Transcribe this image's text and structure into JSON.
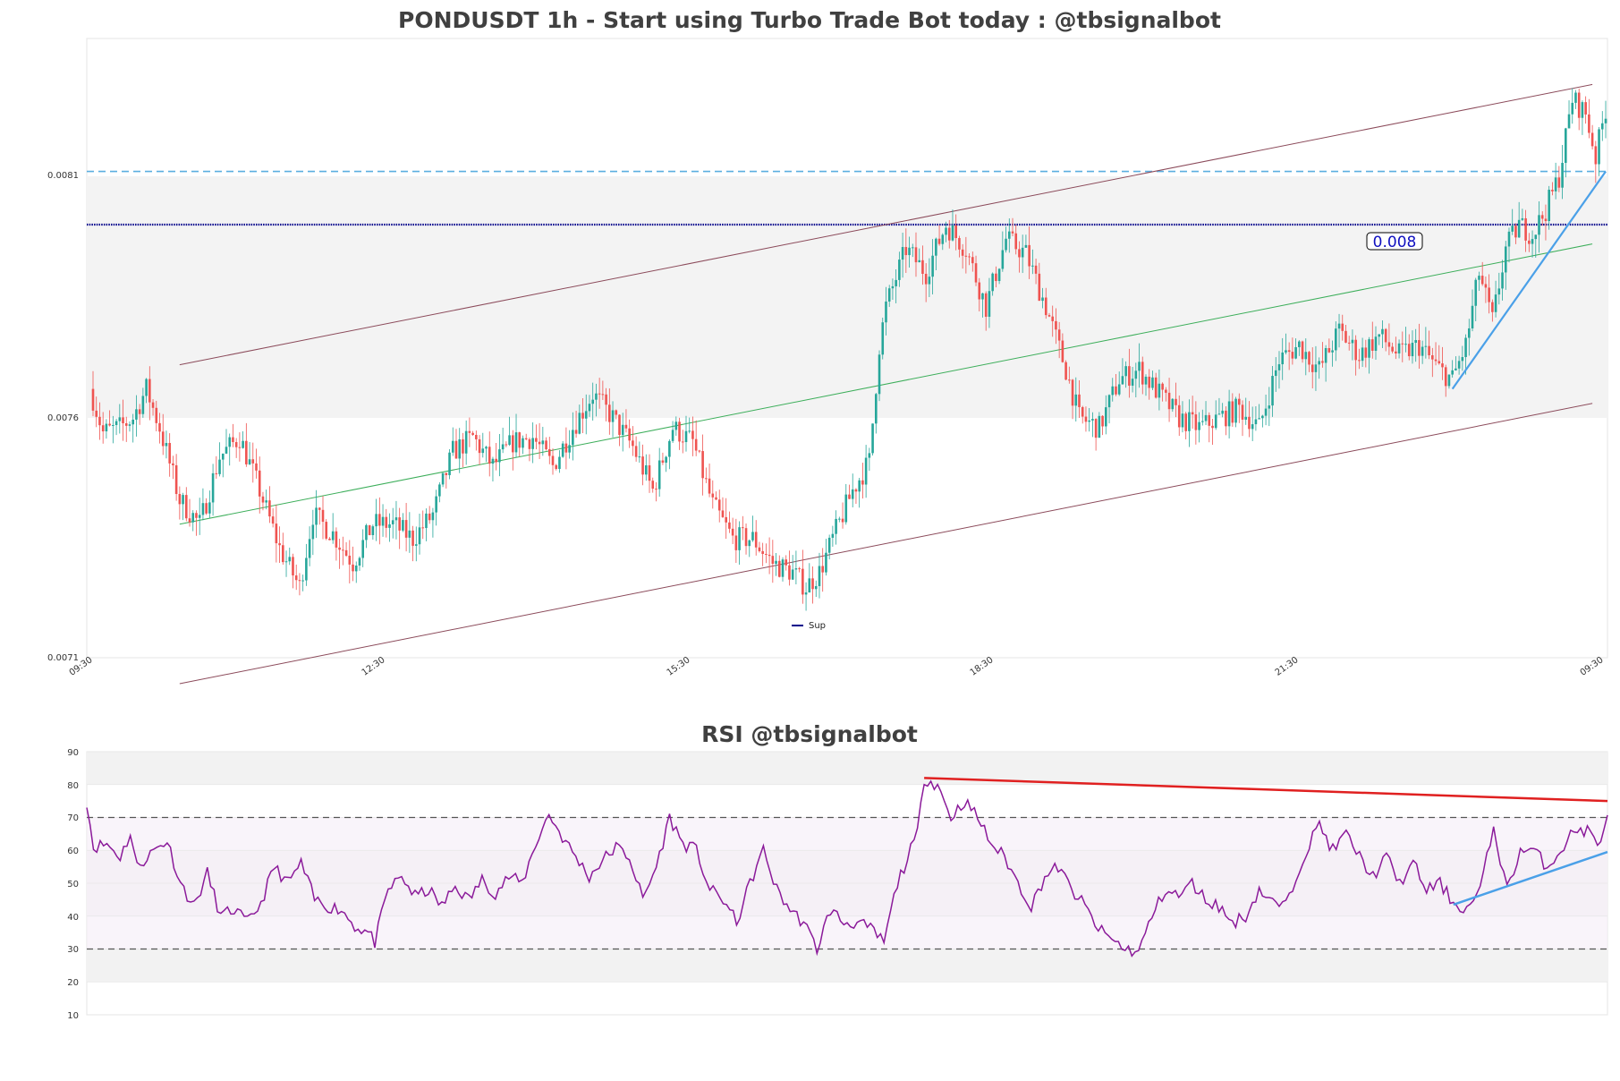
{
  "main_chart": {
    "title": "PONDUSDT 1h - Start using Turbo Trade Bot today : @tbsignalbot",
    "price_label": "0.008",
    "legend_label": "Sup",
    "y_ticks": [
      "0.0081",
      "0.0076",
      "0.0071"
    ],
    "x_ticks": [
      "09:30",
      "12:30",
      "15:30",
      "18:30",
      "21:30",
      "09:30"
    ]
  },
  "rsi_chart": {
    "title": "RSI @tbsignalbot",
    "y_ticks": [
      "90",
      "80",
      "70",
      "60",
      "50",
      "40",
      "30",
      "20",
      "10"
    ]
  },
  "colors": {
    "up": "#26a69a",
    "down": "#ef5350",
    "support_line": "#00008b",
    "dashed_level": "#5aaee0",
    "channel": "#8b4a5a",
    "midline": "#3cae5a",
    "trend_blue": "#4aa0e8",
    "rsi_line": "#8b1a9a",
    "rsi_resistance": "#e02020"
  },
  "chart_data": [
    {
      "type": "candlestick",
      "title": "PONDUSDT 1h - Start using Turbo Trade Bot today : @tbsignalbot",
      "ylim": [
        0.0071,
        0.00836
      ],
      "y_ticks": [
        0.0081,
        0.0076,
        0.0071
      ],
      "x_ticks": [
        "09:30",
        "12:30",
        "15:30",
        "18:30",
        "21:30",
        "09:30"
      ],
      "support_level": 0.008,
      "dashed_level": 0.00811,
      "shaded_band": [
        0.0076,
        0.0081
      ],
      "close_anchors": [
        [
          0,
          0.00764
        ],
        [
          3,
          0.00757
        ],
        [
          8,
          0.00758
        ],
        [
          12,
          0.0076
        ],
        [
          16,
          0.00766
        ],
        [
          20,
          0.00758
        ],
        [
          26,
          0.00743
        ],
        [
          32,
          0.00738
        ],
        [
          38,
          0.00752
        ],
        [
          44,
          0.00756
        ],
        [
          50,
          0.00745
        ],
        [
          56,
          0.00733
        ],
        [
          62,
          0.00725
        ],
        [
          66,
          0.0074
        ],
        [
          72,
          0.00736
        ],
        [
          78,
          0.0073
        ],
        [
          84,
          0.00738
        ],
        [
          90,
          0.00738
        ],
        [
          96,
          0.00735
        ],
        [
          102,
          0.0074
        ],
        [
          108,
          0.00753
        ],
        [
          114,
          0.00756
        ],
        [
          120,
          0.0075
        ],
        [
          126,
          0.00755
        ],
        [
          132,
          0.00756
        ],
        [
          138,
          0.0075
        ],
        [
          144,
          0.00758
        ],
        [
          150,
          0.00765
        ],
        [
          156,
          0.0076
        ],
        [
          162,
          0.00754
        ],
        [
          168,
          0.00745
        ],
        [
          174,
          0.00758
        ],
        [
          180,
          0.00755
        ],
        [
          186,
          0.00742
        ],
        [
          192,
          0.00735
        ],
        [
          198,
          0.00735
        ],
        [
          204,
          0.0073
        ],
        [
          210,
          0.00728
        ],
        [
          214,
          0.00725
        ],
        [
          218,
          0.00728
        ],
        [
          222,
          0.00735
        ],
        [
          228,
          0.00745
        ],
        [
          233,
          0.00751
        ],
        [
          236,
          0.00775
        ],
        [
          238,
          0.00783
        ],
        [
          244,
          0.00795
        ],
        [
          250,
          0.0079
        ],
        [
          256,
          0.008
        ],
        [
          262,
          0.00795
        ],
        [
          268,
          0.00783
        ],
        [
          274,
          0.00797
        ],
        [
          280,
          0.00794
        ],
        [
          286,
          0.00783
        ],
        [
          292,
          0.0077
        ],
        [
          296,
          0.0076
        ],
        [
          302,
          0.00758
        ],
        [
          308,
          0.00768
        ],
        [
          314,
          0.0077
        ],
        [
          320,
          0.00765
        ],
        [
          326,
          0.0076
        ],
        [
          332,
          0.00758
        ],
        [
          338,
          0.0076
        ],
        [
          344,
          0.00762
        ],
        [
          350,
          0.00758
        ],
        [
          356,
          0.00772
        ],
        [
          362,
          0.00775
        ],
        [
          368,
          0.0077
        ],
        [
          374,
          0.00778
        ],
        [
          380,
          0.00773
        ],
        [
          386,
          0.00777
        ],
        [
          392,
          0.00773
        ],
        [
          398,
          0.00775
        ],
        [
          404,
          0.0077
        ],
        [
          408,
          0.00768
        ],
        [
          412,
          0.00775
        ],
        [
          416,
          0.0079
        ],
        [
          420,
          0.0078
        ],
        [
          424,
          0.00795
        ],
        [
          428,
          0.008
        ],
        [
          432,
          0.00798
        ],
        [
          436,
          0.00803
        ],
        [
          440,
          0.0081
        ],
        [
          444,
          0.00826
        ],
        [
          448,
          0.00823
        ],
        [
          451,
          0.00814
        ],
        [
          454,
          0.00824
        ]
      ],
      "bars": 455
    },
    {
      "type": "line",
      "title": "RSI @tbsignalbot",
      "ylim": [
        10,
        90
      ],
      "y_ticks": [
        90,
        80,
        70,
        60,
        50,
        40,
        30,
        20,
        10
      ],
      "levels": [
        30,
        70
      ],
      "bands": [
        [
          20,
          30
        ],
        [
          40,
          60
        ],
        [
          80,
          90
        ]
      ],
      "anchors": [
        [
          0,
          75
        ],
        [
          2,
          61
        ],
        [
          6,
          62
        ],
        [
          10,
          58
        ],
        [
          13,
          65
        ],
        [
          15,
          55
        ],
        [
          20,
          60
        ],
        [
          24,
          63
        ],
        [
          28,
          50
        ],
        [
          32,
          43
        ],
        [
          36,
          53
        ],
        [
          40,
          40
        ],
        [
          44,
          42
        ],
        [
          48,
          38
        ],
        [
          52,
          44
        ],
        [
          56,
          55
        ],
        [
          60,
          50
        ],
        [
          64,
          56
        ],
        [
          68,
          45
        ],
        [
          72,
          43
        ],
        [
          76,
          42
        ],
        [
          80,
          37
        ],
        [
          84,
          35
        ],
        [
          86,
          32
        ],
        [
          90,
          48
        ],
        [
          94,
          52
        ],
        [
          98,
          46
        ],
        [
          102,
          48
        ],
        [
          106,
          43
        ],
        [
          110,
          49
        ],
        [
          114,
          45
        ],
        [
          118,
          51
        ],
        [
          122,
          47
        ],
        [
          126,
          52
        ],
        [
          130,
          50
        ],
        [
          134,
          62
        ],
        [
          138,
          71
        ],
        [
          142,
          64
        ],
        [
          146,
          58
        ],
        [
          150,
          52
        ],
        [
          154,
          57
        ],
        [
          158,
          61
        ],
        [
          162,
          58
        ],
        [
          166,
          45
        ],
        [
          170,
          55
        ],
        [
          174,
          70
        ],
        [
          178,
          62
        ],
        [
          182,
          60
        ],
        [
          186,
          48
        ],
        [
          190,
          45
        ],
        [
          194,
          38
        ],
        [
          198,
          50
        ],
        [
          202,
          60
        ],
        [
          206,
          48
        ],
        [
          210,
          42
        ],
        [
          214,
          38
        ],
        [
          218,
          30
        ],
        [
          222,
          42
        ],
        [
          226,
          38
        ],
        [
          230,
          38
        ],
        [
          234,
          36
        ],
        [
          238,
          32
        ],
        [
          242,
          50
        ],
        [
          246,
          60
        ],
        [
          248,
          65
        ],
        [
          250,
          82
        ],
        [
          254,
          80
        ],
        [
          258,
          70
        ],
        [
          262,
          75
        ],
        [
          266,
          70
        ],
        [
          270,
          62
        ],
        [
          274,
          58
        ],
        [
          278,
          50
        ],
        [
          282,
          43
        ],
        [
          286,
          52
        ],
        [
          290,
          55
        ],
        [
          294,
          48
        ],
        [
          298,
          43
        ],
        [
          302,
          36
        ],
        [
          306,
          33
        ],
        [
          310,
          30
        ],
        [
          314,
          29
        ],
        [
          318,
          40
        ],
        [
          322,
          48
        ],
        [
          326,
          46
        ],
        [
          330,
          50
        ],
        [
          334,
          45
        ],
        [
          338,
          43
        ],
        [
          342,
          38
        ],
        [
          346,
          40
        ],
        [
          350,
          48
        ],
        [
          354,
          44
        ],
        [
          358,
          43
        ],
        [
          362,
          55
        ],
        [
          364,
          60
        ],
        [
          368,
          68
        ],
        [
          372,
          60
        ],
        [
          376,
          65
        ],
        [
          380,
          58
        ],
        [
          384,
          52
        ],
        [
          388,
          58
        ],
        [
          392,
          50
        ],
        [
          396,
          56
        ],
        [
          400,
          48
        ],
        [
          404,
          50
        ],
        [
          408,
          44
        ],
        [
          412,
          42
        ],
        [
          416,
          48
        ],
        [
          420,
          67
        ],
        [
          424,
          48
        ],
        [
          428,
          60
        ],
        [
          432,
          60
        ],
        [
          436,
          55
        ],
        [
          440,
          60
        ],
        [
          444,
          66
        ],
        [
          448,
          66
        ],
        [
          451,
          62
        ],
        [
          454,
          69
        ]
      ],
      "points": 455
    }
  ]
}
